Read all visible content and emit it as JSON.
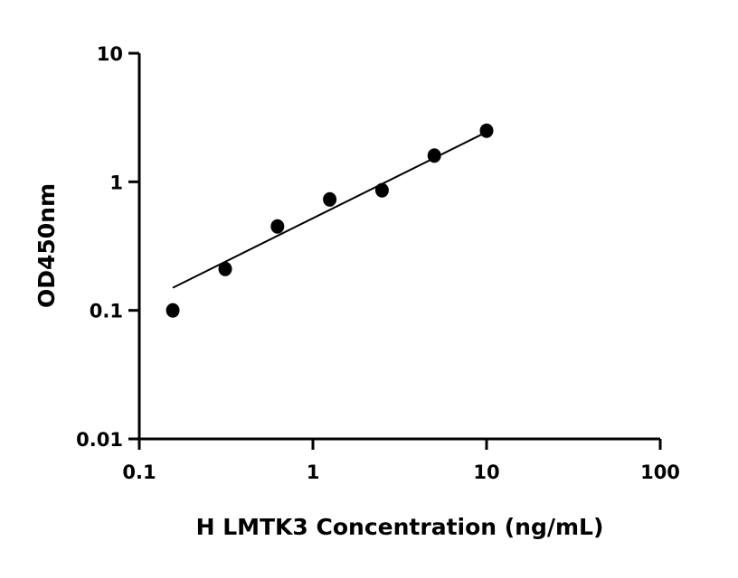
{
  "chart_data": {
    "type": "scatter",
    "title": "",
    "xlabel": "H LMTK3 Concentration (ng/mL)",
    "ylabel": "OD450nm",
    "x_scale": "log",
    "y_scale": "log",
    "xlim": [
      0.1,
      100
    ],
    "ylim": [
      0.01,
      10
    ],
    "x_ticks": [
      "0.1",
      "1",
      "10",
      "100"
    ],
    "y_ticks": [
      "0.01",
      "0.1",
      "1",
      "10"
    ],
    "grid": false,
    "series": [
      {
        "x": [
          0.156,
          0.3125,
          0.625,
          1.25,
          2.5,
          5,
          10
        ],
        "y": [
          0.1,
          0.21,
          0.45,
          0.73,
          0.86,
          1.6,
          2.5
        ],
        "marker": "circle",
        "color": "#000000"
      }
    ],
    "fit_line": {
      "x": [
        0.156,
        10
      ],
      "y": [
        0.15,
        2.44
      ],
      "color": "#000000"
    }
  }
}
